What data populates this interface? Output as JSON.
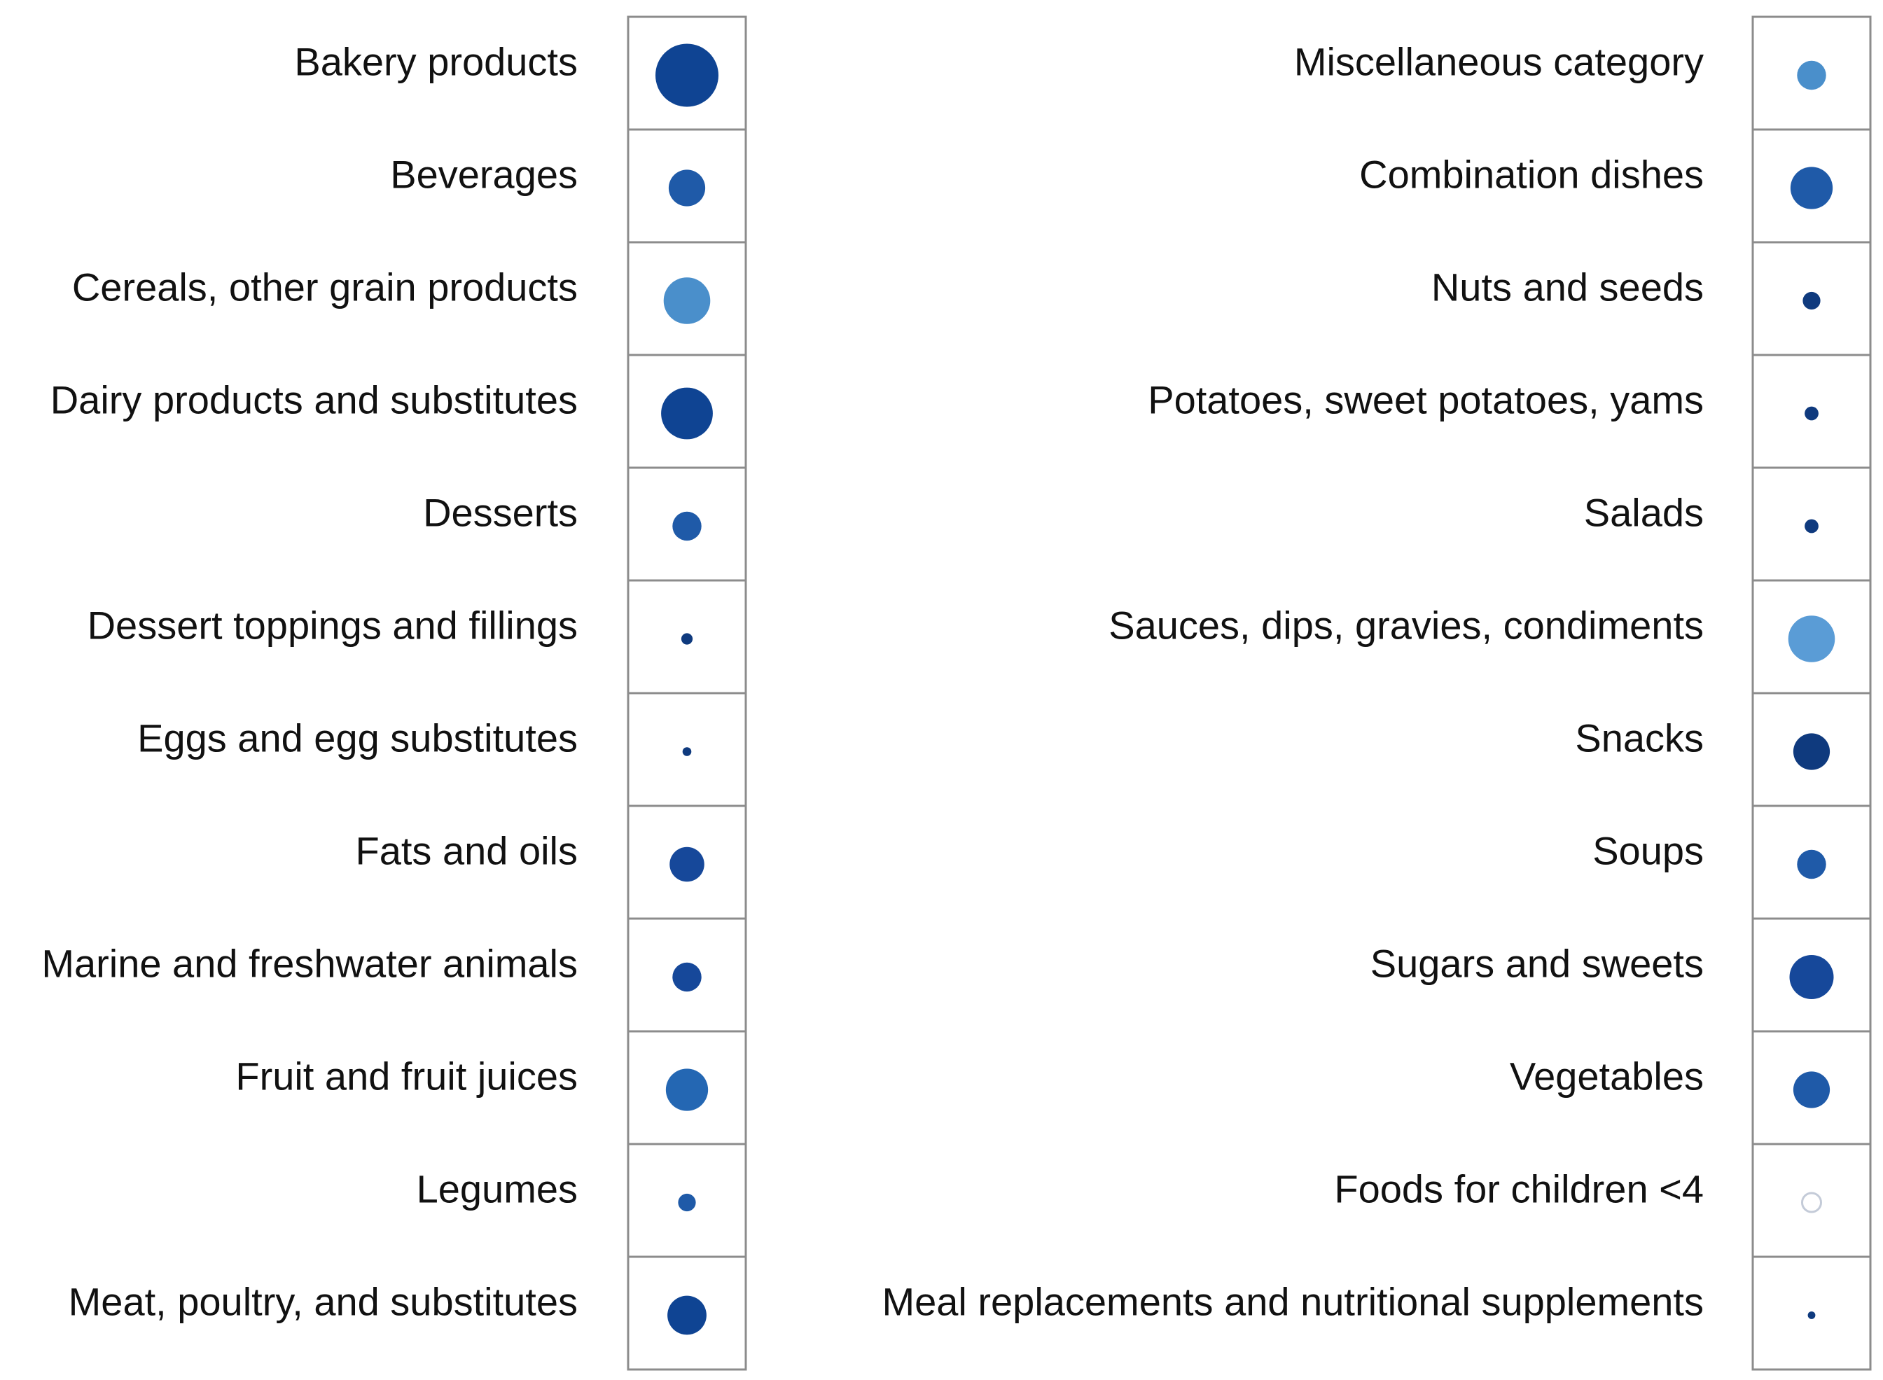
{
  "chart_data": {
    "type": "bubble-matrix",
    "size_encoding": "relative magnitude (estimated from dot size, 0-1)",
    "panels": [
      {
        "items": [
          {
            "label": "Bakery products",
            "size": 1.0,
            "color": "#0f4493"
          },
          {
            "label": "Beverages",
            "size": 0.58,
            "color": "#1f5aa8"
          },
          {
            "label": "Cereals, other grain products",
            "size": 0.74,
            "color": "#4a8fcb"
          },
          {
            "label": "Dairy products and substitutes",
            "size": 0.82,
            "color": "#0f4493"
          },
          {
            "label": "Desserts",
            "size": 0.46,
            "color": "#1f5aa8"
          },
          {
            "label": "Dessert toppings and fillings",
            "size": 0.18,
            "color": "#0f3a7e"
          },
          {
            "label": "Eggs and egg substitutes",
            "size": 0.14,
            "color": "#0f3a7e"
          },
          {
            "label": "Fats and oils",
            "size": 0.55,
            "color": "#16489a"
          },
          {
            "label": "Marine and freshwater animals",
            "size": 0.46,
            "color": "#16489a"
          },
          {
            "label": "Fruit and fruit juices",
            "size": 0.67,
            "color": "#2467b3"
          },
          {
            "label": "Legumes",
            "size": 0.28,
            "color": "#1f5aa8"
          },
          {
            "label": "Meat, poultry, and substitutes",
            "size": 0.62,
            "color": "#0f4493"
          }
        ]
      },
      {
        "items": [
          {
            "label": "Miscellaneous category",
            "size": 0.46,
            "color": "#4a8fcb"
          },
          {
            "label": "Combination dishes",
            "size": 0.67,
            "color": "#1f5aa8"
          },
          {
            "label": "Nuts and seeds",
            "size": 0.28,
            "color": "#0f3a7e"
          },
          {
            "label": "Potatoes, sweet potatoes, yams",
            "size": 0.22,
            "color": "#0f3a7e"
          },
          {
            "label": "Salads",
            "size": 0.22,
            "color": "#0f3a7e"
          },
          {
            "label": "Sauces, dips, gravies, condiments",
            "size": 0.74,
            "color": "#5a9cd6"
          },
          {
            "label": "Snacks",
            "size": 0.58,
            "color": "#0f3a7e"
          },
          {
            "label": "Soups",
            "size": 0.46,
            "color": "#1f5aa8"
          },
          {
            "label": "Sugars and sweets",
            "size": 0.7,
            "color": "#16489a"
          },
          {
            "label": "Vegetables",
            "size": 0.58,
            "color": "#1f5aa8"
          },
          {
            "label": "Foods for children <4",
            "size": 0.3,
            "color": "none",
            "outline": "#c4cbd8"
          },
          {
            "label": "Meal replacements and nutritional supplements",
            "size": 0.12,
            "color": "#0f3a7e"
          }
        ]
      }
    ]
  }
}
